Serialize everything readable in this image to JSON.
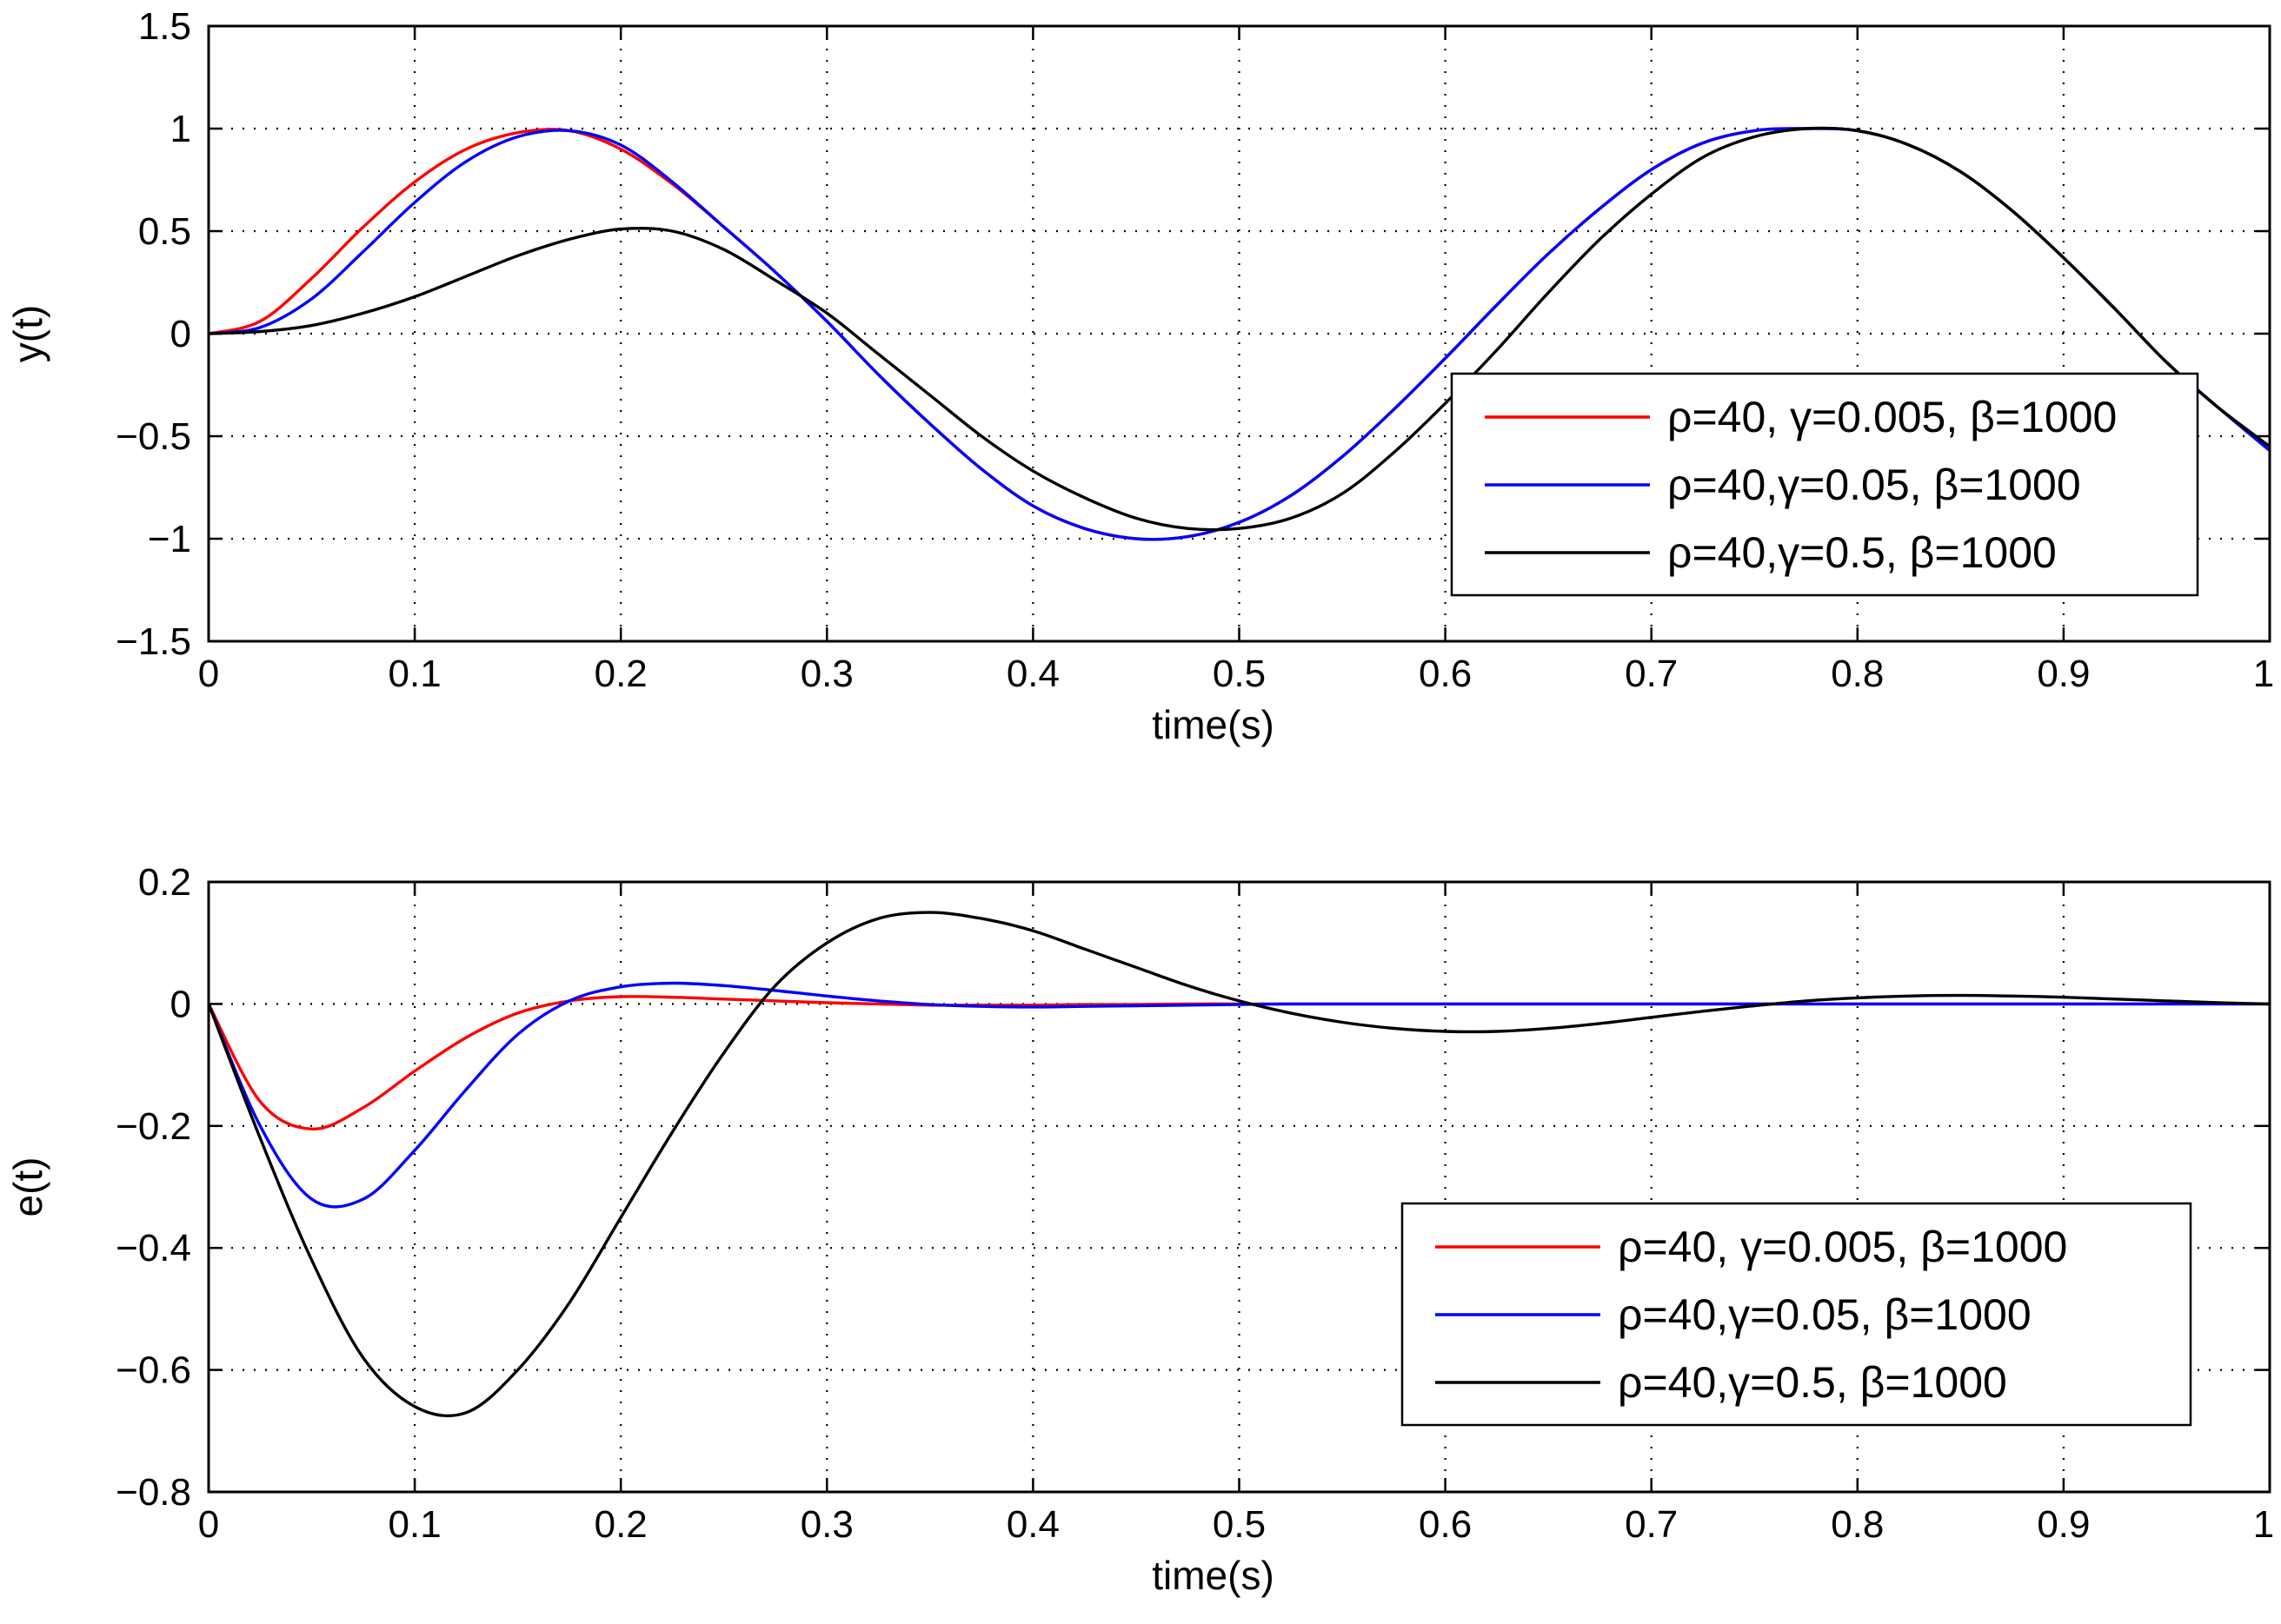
{
  "chart_data": [
    {
      "type": "line",
      "xlabel": "time(s)",
      "ylabel": "y(t)",
      "xlim": [
        0,
        1
      ],
      "ylim": [
        -1.5,
        1.5
      ],
      "xticks": [
        0,
        0.1,
        0.2,
        0.3,
        0.4,
        0.5,
        0.6,
        0.7,
        0.8,
        0.9,
        1
      ],
      "xtick_labels": [
        "0",
        "0.1",
        "0.2",
        "0.3",
        "0.4",
        "0.5",
        "0.6",
        "0.7",
        "0.8",
        "0.9",
        "1"
      ],
      "yticks": [
        -1.5,
        -1,
        -0.5,
        0,
        0.5,
        1,
        1.5
      ],
      "ytick_labels": [
        "−1.5",
        "−1",
        "−0.5",
        "0",
        "0.5",
        "1",
        "1.5"
      ],
      "grid": true,
      "legend_position": "center-right",
      "x": [
        0,
        0.025,
        0.05,
        0.075,
        0.1,
        0.125,
        0.15,
        0.175,
        0.2,
        0.225,
        0.25,
        0.275,
        0.3,
        0.325,
        0.35,
        0.375,
        0.4,
        0.425,
        0.45,
        0.475,
        0.5,
        0.525,
        0.55,
        0.575,
        0.6,
        0.625,
        0.65,
        0.675,
        0.7,
        0.725,
        0.75,
        0.775,
        0.8,
        0.825,
        0.85,
        0.875,
        0.9,
        0.925,
        0.95,
        0.975,
        1
      ],
      "series": [
        {
          "name": "ρ=40, γ=0.005, β=1000",
          "color": "#ff0000",
          "values": [
            0,
            0.06,
            0.27,
            0.52,
            0.74,
            0.9,
            0.98,
            0.99,
            0.9,
            0.73,
            0.52,
            0.3,
            0.06,
            -0.2,
            -0.44,
            -0.66,
            -0.84,
            -0.95,
            -1.0,
            -0.99,
            -0.92,
            -0.79,
            -0.6,
            -0.37,
            -0.12,
            0.14,
            0.39,
            0.61,
            0.8,
            0.93,
            0.99,
            1.0,
            0.99,
            0.92,
            0.79,
            0.6,
            0.37,
            0.12,
            -0.14,
            -0.36,
            -0.57
          ]
        },
        {
          "name": "ρ=40,γ=0.05, β=1000",
          "color": "#0000ff",
          "values": [
            0,
            0.03,
            0.17,
            0.4,
            0.64,
            0.84,
            0.96,
            0.99,
            0.92,
            0.74,
            0.52,
            0.3,
            0.06,
            -0.2,
            -0.44,
            -0.66,
            -0.84,
            -0.95,
            -1.0,
            -0.99,
            -0.92,
            -0.79,
            -0.6,
            -0.37,
            -0.12,
            0.14,
            0.39,
            0.61,
            0.8,
            0.93,
            0.99,
            1.0,
            0.99,
            0.92,
            0.79,
            0.6,
            0.37,
            0.12,
            -0.14,
            -0.36,
            -0.57
          ]
        },
        {
          "name": "ρ=40,γ=0.5, β=1000",
          "color": "#000000",
          "values": [
            0,
            0.01,
            0.04,
            0.1,
            0.18,
            0.28,
            0.38,
            0.46,
            0.51,
            0.5,
            0.41,
            0.26,
            0.1,
            -0.1,
            -0.3,
            -0.5,
            -0.67,
            -0.8,
            -0.9,
            -0.95,
            -0.95,
            -0.9,
            -0.78,
            -0.58,
            -0.34,
            -0.08,
            0.2,
            0.46,
            0.68,
            0.86,
            0.96,
            1.0,
            0.99,
            0.92,
            0.79,
            0.6,
            0.37,
            0.12,
            -0.14,
            -0.36,
            -0.55
          ]
        }
      ]
    },
    {
      "type": "line",
      "xlabel": "time(s)",
      "ylabel": "e(t)",
      "xlim": [
        0,
        1
      ],
      "ylim": [
        -0.8,
        0.2
      ],
      "xticks": [
        0,
        0.1,
        0.2,
        0.3,
        0.4,
        0.5,
        0.6,
        0.7,
        0.8,
        0.9,
        1
      ],
      "xtick_labels": [
        "0",
        "0.1",
        "0.2",
        "0.3",
        "0.4",
        "0.5",
        "0.6",
        "0.7",
        "0.8",
        "0.9",
        "1"
      ],
      "yticks": [
        -0.8,
        -0.6,
        -0.4,
        -0.2,
        0,
        0.2
      ],
      "ytick_labels": [
        "−0.8",
        "−0.6",
        "−0.4",
        "−0.2",
        "0",
        "0.2"
      ],
      "grid": true,
      "legend_position": "bottom-right",
      "x": [
        0,
        0.025,
        0.05,
        0.075,
        0.1,
        0.125,
        0.15,
        0.175,
        0.2,
        0.225,
        0.25,
        0.275,
        0.3,
        0.325,
        0.35,
        0.375,
        0.4,
        0.425,
        0.45,
        0.475,
        0.5,
        0.525,
        0.55,
        0.575,
        0.6,
        0.625,
        0.65,
        0.675,
        0.7,
        0.725,
        0.75,
        0.775,
        0.8,
        0.825,
        0.85,
        0.875,
        0.9,
        0.925,
        0.95,
        0.975,
        1
      ],
      "series": [
        {
          "name": "ρ=40, γ=0.005, β=1000",
          "color": "#ff0000",
          "values": [
            0,
            -0.16,
            -0.205,
            -0.17,
            -0.11,
            -0.055,
            -0.015,
            0.005,
            0.012,
            0.011,
            0.008,
            0.005,
            0.002,
            0,
            -0.002,
            -0.002,
            -0.002,
            -0.001,
            -0.001,
            0,
            0,
            0,
            0,
            0,
            0,
            0,
            0,
            0,
            0,
            0,
            0,
            0,
            0,
            0,
            0,
            0,
            0,
            0,
            0,
            0,
            0
          ]
        },
        {
          "name": "ρ=40,γ=0.05, β=1000",
          "color": "#0000ff",
          "values": [
            0,
            -0.2,
            -0.32,
            -0.32,
            -0.24,
            -0.14,
            -0.05,
            0.005,
            0.028,
            0.034,
            0.03,
            0.022,
            0.013,
            0.005,
            -0.001,
            -0.004,
            -0.005,
            -0.004,
            -0.003,
            -0.002,
            -0.001,
            0,
            0,
            0,
            0,
            0,
            0,
            0,
            0,
            0,
            0,
            0,
            0,
            0,
            0,
            0,
            0,
            0,
            0,
            0,
            0
          ]
        },
        {
          "name": "ρ=40,γ=0.5, β=1000",
          "color": "#000000",
          "values": [
            0,
            -0.22,
            -0.42,
            -0.58,
            -0.66,
            -0.67,
            -0.6,
            -0.49,
            -0.35,
            -0.21,
            -0.08,
            0.03,
            0.1,
            0.14,
            0.15,
            0.14,
            0.12,
            0.09,
            0.06,
            0.03,
            0.005,
            -0.015,
            -0.03,
            -0.04,
            -0.045,
            -0.045,
            -0.04,
            -0.032,
            -0.022,
            -0.012,
            -0.003,
            0.005,
            0.01,
            0.013,
            0.014,
            0.013,
            0.011,
            0.008,
            0.005,
            0.002,
            0
          ]
        }
      ]
    }
  ]
}
